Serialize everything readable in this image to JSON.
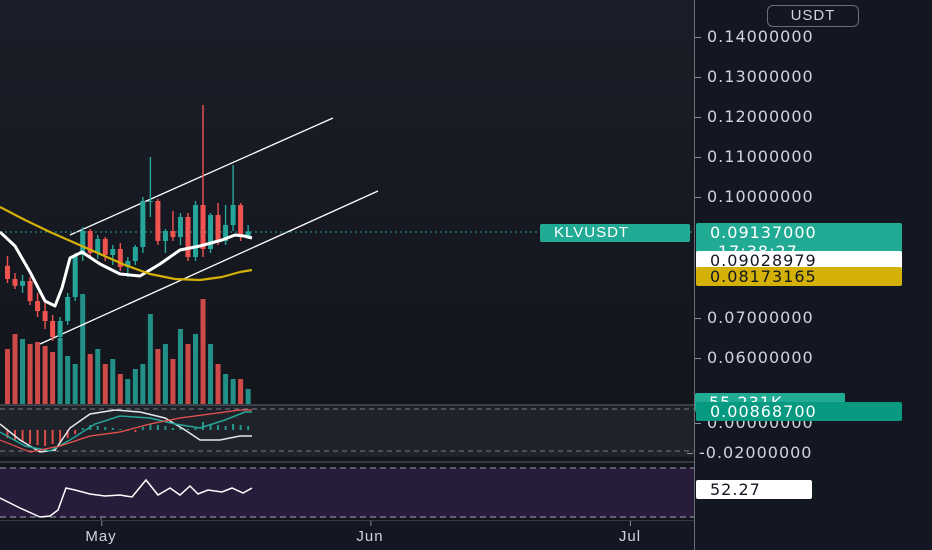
{
  "currency": "USDT",
  "symbol": "KLVUSDT",
  "price_scale": {
    "ticks": [
      "0.14000000",
      "0.13000000",
      "0.12000000",
      "0.11000000",
      "0.10000000",
      "0.07000000",
      "0.06000000",
      "0.00000000",
      "-0.02000000"
    ],
    "labels": {
      "last_price": "0.09137000",
      "countdown": "17:38:27",
      "ma_fast": "0.09028979",
      "ma_slow": "0.08173165",
      "volume": "55.231K",
      "macd": "0.00868700",
      "rsi": "52.27"
    }
  },
  "time_axis": {
    "labels": [
      "May",
      "Jun",
      "Jul"
    ]
  },
  "colors": {
    "up": "#26a69a",
    "down": "#ef5350",
    "ma_fast": "#ffffff",
    "ma_slow": "#d4b106",
    "channel": "#ffffff",
    "last_price_tag": "#22ab94",
    "rsi_line": "#ffffff",
    "rsi_band": "#2a1e3f"
  },
  "chart_data": {
    "type": "candlestick",
    "price_range": [
      0.05,
      0.145
    ],
    "candles": [
      {
        "o": 0.0828,
        "h": 0.0852,
        "l": 0.0785,
        "c": 0.0795
      },
      {
        "o": 0.0795,
        "h": 0.081,
        "l": 0.077,
        "c": 0.0778
      },
      {
        "o": 0.0778,
        "h": 0.0805,
        "l": 0.076,
        "c": 0.079
      },
      {
        "o": 0.079,
        "h": 0.08,
        "l": 0.073,
        "c": 0.074
      },
      {
        "o": 0.074,
        "h": 0.076,
        "l": 0.07,
        "c": 0.0715
      },
      {
        "o": 0.0715,
        "h": 0.074,
        "l": 0.067,
        "c": 0.069
      },
      {
        "o": 0.069,
        "h": 0.0705,
        "l": 0.064,
        "c": 0.065
      },
      {
        "o": 0.065,
        "h": 0.07,
        "l": 0.064,
        "c": 0.069
      },
      {
        "o": 0.069,
        "h": 0.076,
        "l": 0.068,
        "c": 0.075
      },
      {
        "o": 0.075,
        "h": 0.086,
        "l": 0.074,
        "c": 0.0855
      },
      {
        "o": 0.0855,
        "h": 0.0925,
        "l": 0.084,
        "c": 0.0915
      },
      {
        "o": 0.0915,
        "h": 0.092,
        "l": 0.085,
        "c": 0.086
      },
      {
        "o": 0.086,
        "h": 0.0905,
        "l": 0.0845,
        "c": 0.0895
      },
      {
        "o": 0.0895,
        "h": 0.09,
        "l": 0.084,
        "c": 0.0855
      },
      {
        "o": 0.0855,
        "h": 0.088,
        "l": 0.083,
        "c": 0.087
      },
      {
        "o": 0.087,
        "h": 0.0885,
        "l": 0.0815,
        "c": 0.0825
      },
      {
        "o": 0.0825,
        "h": 0.085,
        "l": 0.08,
        "c": 0.084
      },
      {
        "o": 0.084,
        "h": 0.088,
        "l": 0.083,
        "c": 0.0875
      },
      {
        "o": 0.0875,
        "h": 0.1,
        "l": 0.086,
        "c": 0.099
      },
      {
        "o": 0.099,
        "h": 0.11,
        "l": 0.095,
        "c": 0.099
      },
      {
        "o": 0.099,
        "h": 0.0995,
        "l": 0.088,
        "c": 0.089
      },
      {
        "o": 0.089,
        "h": 0.092,
        "l": 0.086,
        "c": 0.0915
      },
      {
        "o": 0.0915,
        "h": 0.0965,
        "l": 0.089,
        "c": 0.09
      },
      {
        "o": 0.09,
        "h": 0.096,
        "l": 0.088,
        "c": 0.095
      },
      {
        "o": 0.095,
        "h": 0.096,
        "l": 0.084,
        "c": 0.085
      },
      {
        "o": 0.085,
        "h": 0.099,
        "l": 0.084,
        "c": 0.098
      },
      {
        "o": 0.098,
        "h": 0.123,
        "l": 0.085,
        "c": 0.087
      },
      {
        "o": 0.087,
        "h": 0.096,
        "l": 0.086,
        "c": 0.0955
      },
      {
        "o": 0.0955,
        "h": 0.0985,
        "l": 0.088,
        "c": 0.089
      },
      {
        "o": 0.089,
        "h": 0.098,
        "l": 0.088,
        "c": 0.093
      },
      {
        "o": 0.093,
        "h": 0.108,
        "l": 0.0915,
        "c": 0.098
      },
      {
        "o": 0.098,
        "h": 0.0985,
        "l": 0.089,
        "c": 0.09
      },
      {
        "o": 0.09,
        "h": 0.093,
        "l": 0.0895,
        "c": 0.0914
      }
    ]
  }
}
